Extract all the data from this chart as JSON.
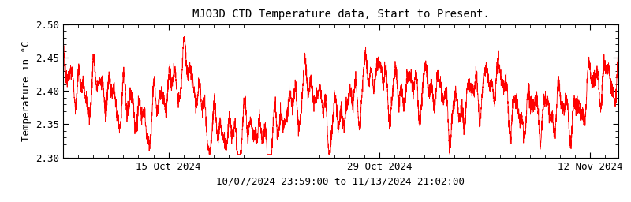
{
  "title": "MJO3D CTD Temperature data, Start to Present.",
  "xlabel": "10/07/2024 23:59:00 to 11/13/2024 21:02:00",
  "ylabel": "Temperature in °C",
  "ylim": [
    2.3,
    2.5
  ],
  "yticks": [
    2.3,
    2.35,
    2.4,
    2.45,
    2.5
  ],
  "start_date": "2024-10-07T23:59:00",
  "end_date": "2024-11-13T21:02:00",
  "xtick_dates": [
    "2024-10-15",
    "2024-10-29",
    "2024-11-12"
  ],
  "xtick_labels": [
    "15 Oct 2024",
    "29 Oct 2024",
    "12 Nov 2024"
  ],
  "line_color": "#ff0000",
  "bg_color": "#ffffff",
  "line_width": 0.6,
  "title_fontsize": 10,
  "label_fontsize": 9,
  "tick_fontsize": 9,
  "seed": 42,
  "n_points": 5000
}
